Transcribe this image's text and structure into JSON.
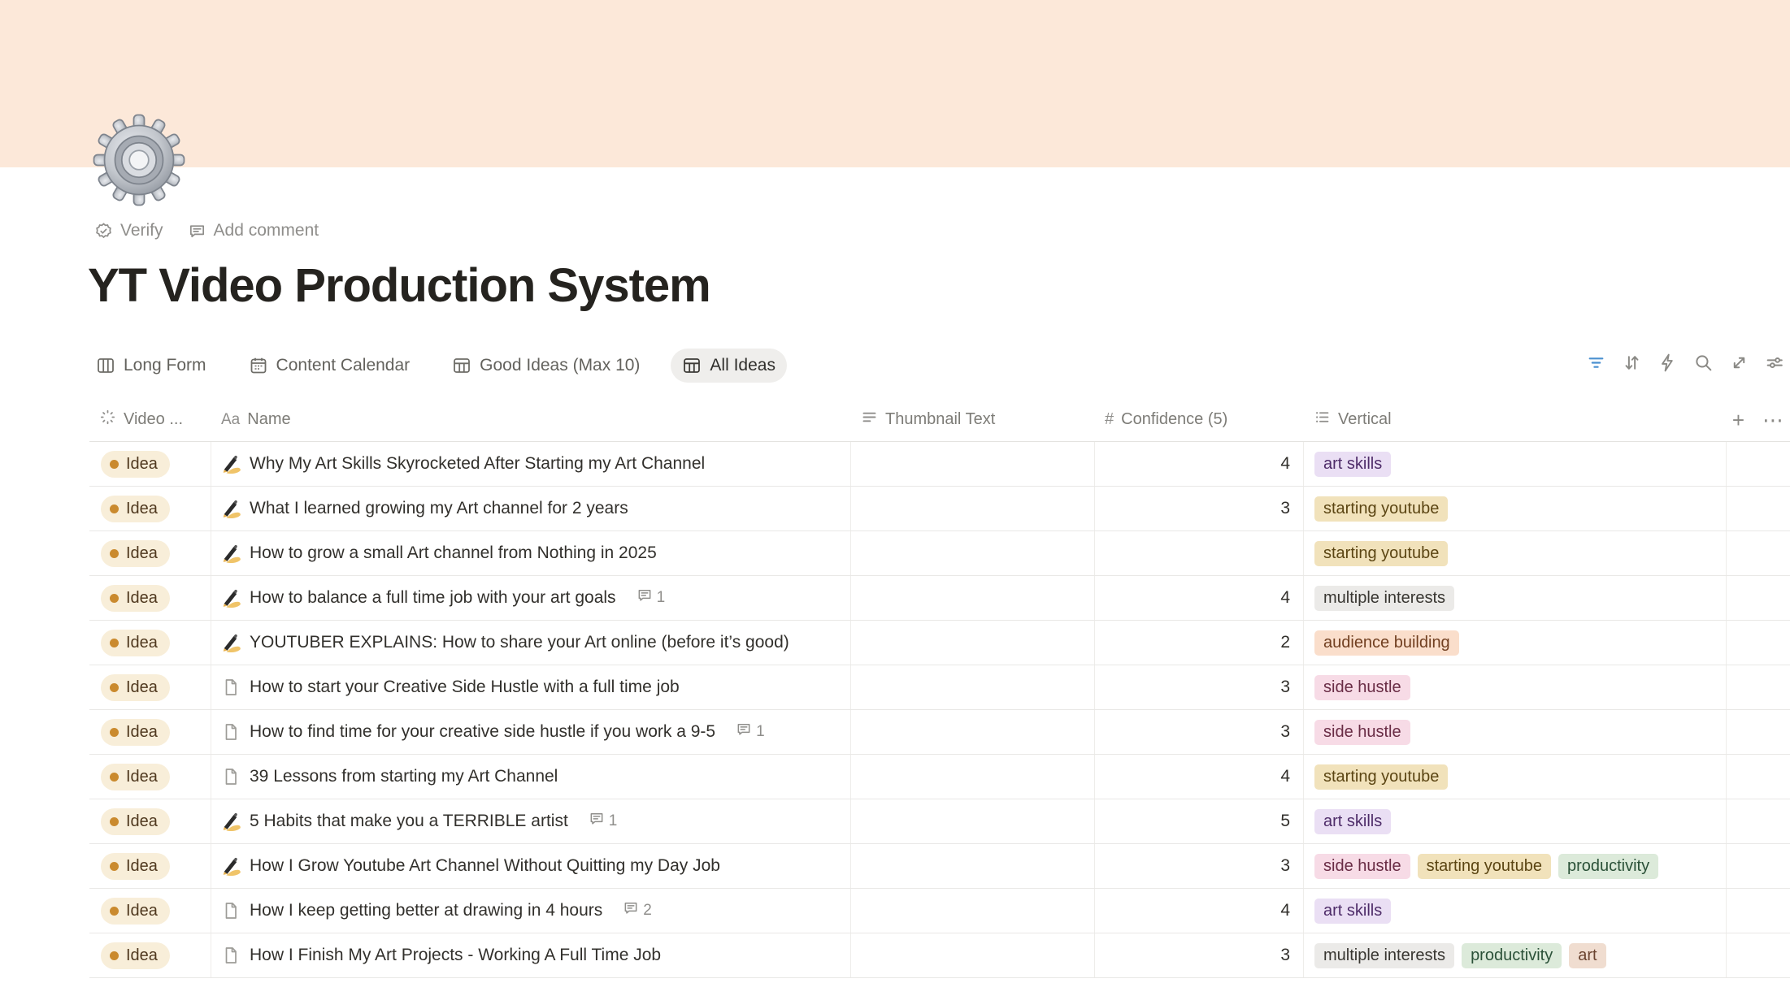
{
  "page": {
    "title": "YT Video Production System",
    "verify_label": "Verify",
    "add_comment_label": "Add comment",
    "icon": "gear-3d",
    "cover_color": "#fce8d9"
  },
  "tabs": [
    {
      "label": "Long Form",
      "icon": "board",
      "selected": false
    },
    {
      "label": "Content Calendar",
      "icon": "calendar",
      "selected": false
    },
    {
      "label": "Good Ideas (Max 10)",
      "icon": "table",
      "selected": false
    },
    {
      "label": "All Ideas",
      "icon": "table",
      "selected": true
    }
  ],
  "toolbar": {
    "icons": [
      {
        "name": "filter-icon",
        "active_color": "#4a90d0"
      },
      {
        "name": "sort-icon"
      },
      {
        "name": "lightning-icon"
      },
      {
        "name": "search-icon"
      },
      {
        "name": "expand-icon"
      },
      {
        "name": "settings-sliders-icon"
      }
    ]
  },
  "table": {
    "columns": [
      {
        "id": "status",
        "label": "Video ...",
        "icon": "status-spinner"
      },
      {
        "id": "name",
        "label": "Name",
        "icon": "aa"
      },
      {
        "id": "thumbnail",
        "label": "Thumbnail Text",
        "icon": "text-lines"
      },
      {
        "id": "confidence",
        "label": "Confidence (5)",
        "icon": "hash"
      },
      {
        "id": "vertical",
        "label": "Vertical",
        "icon": "bullet-list"
      }
    ],
    "add_column_label": "+",
    "more_label": "⋯",
    "rows": [
      {
        "status": "Idea",
        "icon": "writing-hand",
        "name": "Why My Art Skills Skyrocketed After Starting my Art Channel",
        "comments": null,
        "thumbnail": "",
        "confidence": 4,
        "tags": [
          {
            "label": "art skills",
            "color": "purple"
          }
        ]
      },
      {
        "status": "Idea",
        "icon": "writing-hand",
        "name": "What I learned growing my Art channel for 2 years",
        "comments": null,
        "thumbnail": "",
        "confidence": 3,
        "tags": [
          {
            "label": "starting youtube",
            "color": "yellow"
          }
        ]
      },
      {
        "status": "Idea",
        "icon": "writing-hand",
        "name": "How to grow a small Art channel from Nothing in 2025",
        "comments": null,
        "thumbnail": "",
        "confidence": null,
        "tags": [
          {
            "label": "starting youtube",
            "color": "yellow"
          }
        ]
      },
      {
        "status": "Idea",
        "icon": "writing-hand",
        "name": "How to balance a full time job with your art goals",
        "comments": 1,
        "thumbnail": "",
        "confidence": 4,
        "tags": [
          {
            "label": "multiple interests",
            "color": "gray"
          }
        ]
      },
      {
        "status": "Idea",
        "icon": "writing-hand",
        "name": "YOUTUBER EXPLAINS: How to share your Art online (before it’s good)",
        "comments": null,
        "thumbnail": "",
        "confidence": 2,
        "tags": [
          {
            "label": "audience building",
            "color": "orange"
          }
        ]
      },
      {
        "status": "Idea",
        "icon": "page",
        "name": "How to start your Creative Side Hustle with a full time job",
        "comments": null,
        "thumbnail": "",
        "confidence": 3,
        "tags": [
          {
            "label": "side hustle",
            "color": "pink"
          }
        ]
      },
      {
        "status": "Idea",
        "icon": "page",
        "name": "How to find time for your creative side hustle if you work a 9-5",
        "comments": 1,
        "thumbnail": "",
        "confidence": 3,
        "tags": [
          {
            "label": "side hustle",
            "color": "pink"
          }
        ]
      },
      {
        "status": "Idea",
        "icon": "page",
        "name": "39 Lessons from starting my Art Channel",
        "comments": null,
        "thumbnail": "",
        "confidence": 4,
        "tags": [
          {
            "label": "starting youtube",
            "color": "yellow"
          }
        ]
      },
      {
        "status": "Idea",
        "icon": "writing-hand",
        "name": "5 Habits that make you a TERRIBLE artist",
        "comments": 1,
        "thumbnail": "",
        "confidence": 5,
        "tags": [
          {
            "label": "art skills",
            "color": "purple"
          }
        ]
      },
      {
        "status": "Idea",
        "icon": "writing-hand",
        "name": "How I Grow Youtube Art Channel Without Quitting my Day Job",
        "comments": null,
        "thumbnail": "",
        "confidence": 3,
        "tags": [
          {
            "label": "side hustle",
            "color": "pink"
          },
          {
            "label": "starting youtube",
            "color": "yellow"
          },
          {
            "label": "productivity",
            "color": "green"
          }
        ]
      },
      {
        "status": "Idea",
        "icon": "page",
        "name": "How I keep getting better at drawing in 4 hours",
        "comments": 2,
        "thumbnail": "",
        "confidence": 4,
        "tags": [
          {
            "label": "art skills",
            "color": "purple"
          }
        ]
      },
      {
        "status": "Idea",
        "icon": "page",
        "name": "How I Finish My Art Projects - Working A Full Time Job",
        "comments": null,
        "thumbnail": "",
        "confidence": 3,
        "tags": [
          {
            "label": "multiple interests",
            "color": "gray"
          },
          {
            "label": "productivity",
            "color": "green"
          },
          {
            "label": "art",
            "color": "brown"
          }
        ]
      }
    ]
  },
  "status_colors": {
    "idea_bg": "#f8eed9",
    "idea_dot": "#ca8a2e",
    "idea_text": "#50391f"
  },
  "tag_colors": {
    "purple": {
      "bg": "#eadff4",
      "text": "#4e2c69"
    },
    "yellow": {
      "bg": "#f1e2bb",
      "text": "#5b4513"
    },
    "gray": {
      "bg": "#ebeae8",
      "text": "#383631"
    },
    "orange": {
      "bg": "#fadecb",
      "text": "#713f20"
    },
    "pink": {
      "bg": "#f7dbe6",
      "text": "#692c45"
    },
    "green": {
      "bg": "#dceada",
      "text": "#2b5138"
    },
    "brown": {
      "bg": "#f0ddd0",
      "text": "#6b4430"
    }
  }
}
